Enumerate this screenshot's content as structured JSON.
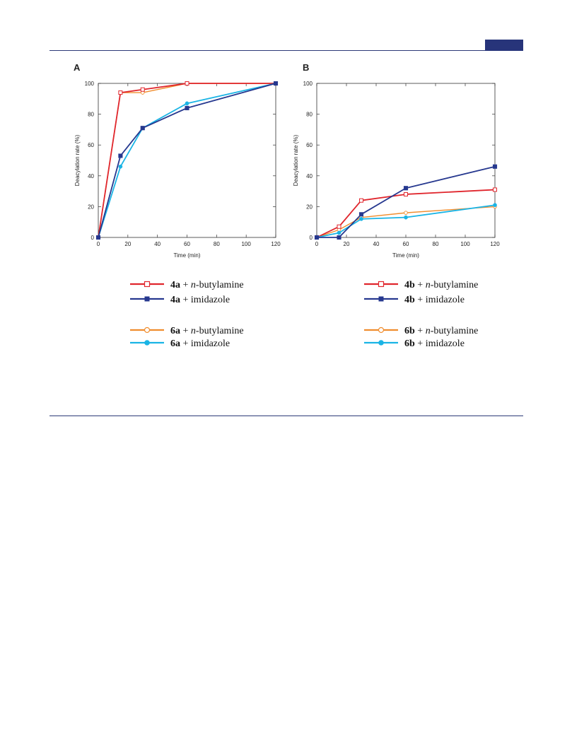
{
  "page": {
    "accent_color": "#27347a"
  },
  "chart_data": [
    {
      "type": "line",
      "panel_label": "A",
      "xlabel": "Time (min)",
      "ylabel": "Deacylation rate (%)",
      "xlim": [
        0,
        120
      ],
      "ylim": [
        0,
        100
      ],
      "x_ticks": [
        "0",
        "20",
        "40",
        "60",
        "80",
        "100",
        "120"
      ],
      "y_ticks": [
        "0",
        "20",
        "40",
        "60",
        "80",
        "100"
      ],
      "grid": false,
      "series": [
        {
          "name": "4a + n-butylamine",
          "compound": "4a",
          "pre": " + ",
          "reagent_italic": "n",
          "reagent": "-butylamine",
          "color": "#e0262d",
          "marker": "square-open",
          "x": [
            0,
            15,
            30,
            60,
            120
          ],
          "y": [
            0,
            94,
            96,
            100,
            100
          ]
        },
        {
          "name": "4a + imidazole",
          "compound": "4a",
          "pre": " + ",
          "reagent_italic": "",
          "reagent": "imidazole",
          "color": "#26388f",
          "marker": "square-filled",
          "x": [
            0,
            15,
            30,
            60,
            120
          ],
          "y": [
            0,
            53,
            71,
            84,
            100
          ]
        },
        {
          "name": "6a + n-butylamine",
          "compound": "6a",
          "pre": " + ",
          "reagent_italic": "n",
          "reagent": "-butylamine",
          "color": "#f08d2e",
          "marker": "circle-open",
          "x": [
            0,
            15,
            30,
            60,
            120
          ],
          "y": [
            0,
            94,
            94,
            100,
            100
          ]
        },
        {
          "name": "6a + imidazole",
          "compound": "6a",
          "pre": " + ",
          "reagent_italic": "",
          "reagent": "imidazole",
          "color": "#1ab4e5",
          "marker": "circle-filled",
          "x": [
            0,
            15,
            30,
            60,
            120
          ],
          "y": [
            0,
            46,
            71,
            87,
            100
          ]
        }
      ]
    },
    {
      "type": "line",
      "panel_label": "B",
      "xlabel": "Time (min)",
      "ylabel": "Deacylation rate (%)",
      "xlim": [
        0,
        120
      ],
      "ylim": [
        0,
        100
      ],
      "x_ticks": [
        "0",
        "20",
        "40",
        "60",
        "80",
        "100",
        "120"
      ],
      "y_ticks": [
        "0",
        "20",
        "40",
        "60",
        "80",
        "100"
      ],
      "grid": false,
      "series": [
        {
          "name": "4b + n-butylamine",
          "compound": "4b",
          "pre": " + ",
          "reagent_italic": "n",
          "reagent": "-butylamine",
          "color": "#e0262d",
          "marker": "square-open",
          "x": [
            0,
            15,
            30,
            60,
            120
          ],
          "y": [
            0,
            7,
            24,
            28,
            31
          ]
        },
        {
          "name": "4b + imidazole",
          "compound": "4b",
          "pre": " + ",
          "reagent_italic": "",
          "reagent": "imidazole",
          "color": "#26388f",
          "marker": "square-filled",
          "x": [
            0,
            15,
            30,
            60,
            120
          ],
          "y": [
            0,
            0,
            15,
            32,
            46
          ]
        },
        {
          "name": "6b + n-butylamine",
          "compound": "6b",
          "pre": " + ",
          "reagent_italic": "n",
          "reagent": "-butylamine",
          "color": "#f08d2e",
          "marker": "circle-open",
          "x": [
            0,
            15,
            30,
            60,
            120
          ],
          "y": [
            0,
            5,
            13,
            16,
            20
          ]
        },
        {
          "name": "6b + imidazole",
          "compound": "6b",
          "pre": " + ",
          "reagent_italic": "",
          "reagent": "imidazole",
          "color": "#1ab4e5",
          "marker": "circle-filled",
          "x": [
            0,
            15,
            30,
            60,
            120
          ],
          "y": [
            0,
            3,
            12,
            13,
            21
          ]
        }
      ]
    }
  ]
}
